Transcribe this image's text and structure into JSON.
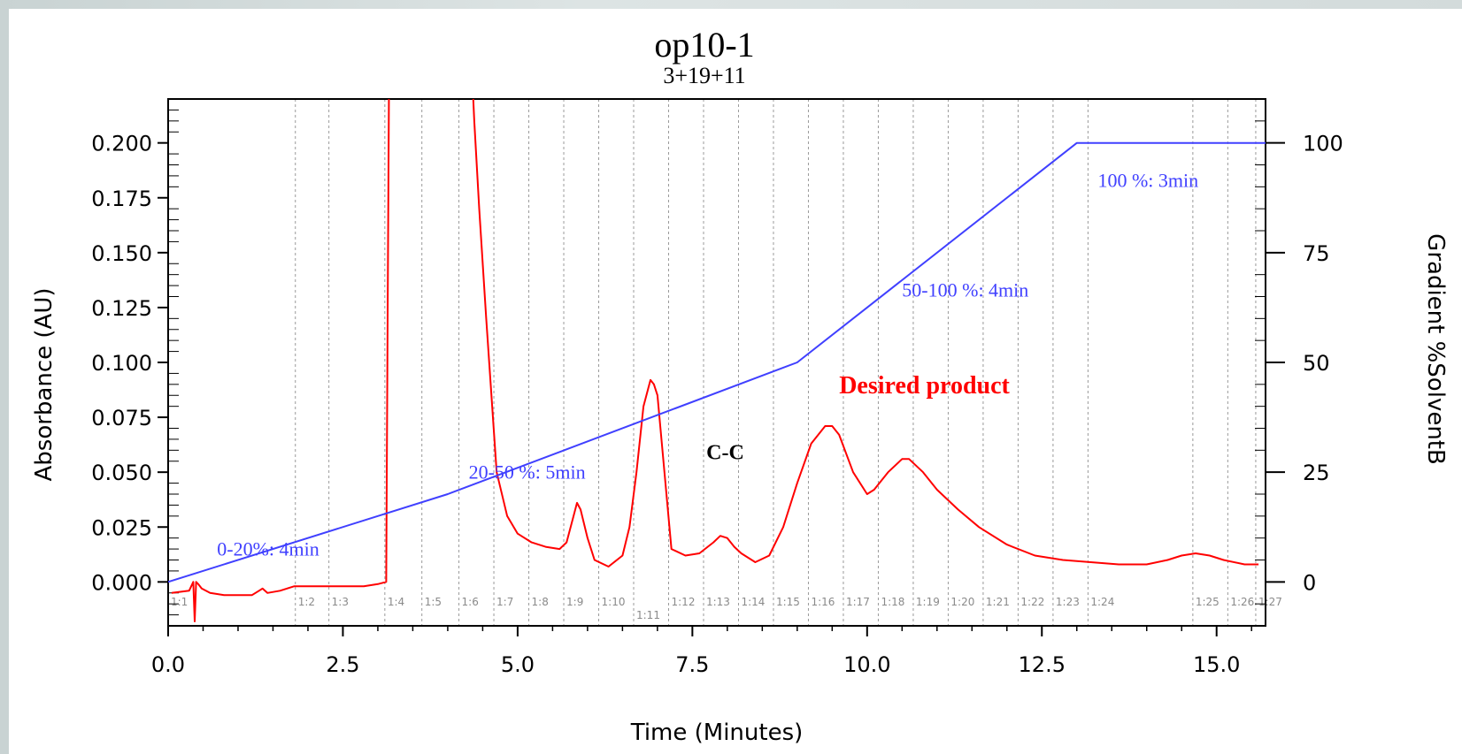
{
  "chart_data": {
    "type": "line",
    "title": "op10-1",
    "subtitle": "3+19+11",
    "xlabel": "Time (Minutes)",
    "ylabel": "Absorbance (AU)",
    "y2label": "Gradient %SolventB",
    "xlim": [
      0,
      15.7
    ],
    "ylim": [
      -0.02,
      0.22
    ],
    "y2lim": [
      -10,
      110
    ],
    "x_ticks": [
      "0.0",
      "2.5",
      "5.0",
      "7.5",
      "10.0",
      "12.5",
      "15.0"
    ],
    "y_ticks": [
      "0.000",
      "0.025",
      "0.050",
      "0.075",
      "0.100",
      "0.125",
      "0.150",
      "0.175",
      "0.200"
    ],
    "y2_ticks": [
      "0",
      "25",
      "50",
      "75",
      "100"
    ],
    "grid": "vertical dashed at fraction boundaries",
    "series": [
      {
        "color": "#ff0000",
        "axis": "left",
        "x": [
          0.05,
          0.3,
          0.36,
          0.38,
          0.4,
          0.43,
          0.48,
          0.6,
          0.8,
          1.0,
          1.2,
          1.3,
          1.35,
          1.42,
          1.6,
          1.8,
          1.9,
          2.2,
          2.5,
          2.8,
          3.0,
          3.12,
          3.14,
          3.16,
          3.18,
          3.2,
          3.22,
          4.35,
          4.38,
          4.45,
          4.55,
          4.7,
          4.85,
          5.0,
          5.2,
          5.4,
          5.6,
          5.7,
          5.8,
          5.85,
          5.9,
          6.0,
          6.1,
          6.3,
          6.5,
          6.6,
          6.7,
          6.8,
          6.9,
          6.95,
          7.0,
          7.1,
          7.2,
          7.4,
          7.6,
          7.8,
          7.9,
          8.0,
          8.1,
          8.2,
          8.4,
          8.6,
          8.8,
          9.0,
          9.2,
          9.4,
          9.5,
          9.6,
          9.8,
          10.0,
          10.1,
          10.3,
          10.5,
          10.6,
          10.8,
          11.0,
          11.3,
          11.6,
          12.0,
          12.4,
          12.8,
          13.2,
          13.6,
          14.0,
          14.3,
          14.5,
          14.7,
          14.9,
          15.1,
          15.4,
          15.6
        ],
        "values": [
          -0.005,
          -0.004,
          0.0,
          -0.018,
          0.0,
          -0.001,
          -0.003,
          -0.005,
          -0.006,
          -0.006,
          -0.006,
          -0.004,
          -0.003,
          -0.005,
          -0.004,
          -0.002,
          -0.002,
          -0.002,
          -0.002,
          -0.002,
          -0.001,
          0.0,
          0.12,
          0.23,
          0.23,
          0.23,
          0.23,
          0.23,
          0.21,
          0.17,
          0.12,
          0.05,
          0.03,
          0.022,
          0.018,
          0.016,
          0.015,
          0.018,
          0.03,
          0.036,
          0.033,
          0.02,
          0.01,
          0.007,
          0.012,
          0.025,
          0.05,
          0.08,
          0.092,
          0.09,
          0.085,
          0.05,
          0.015,
          0.012,
          0.013,
          0.018,
          0.021,
          0.02,
          0.016,
          0.013,
          0.009,
          0.012,
          0.025,
          0.045,
          0.063,
          0.071,
          0.071,
          0.067,
          0.05,
          0.04,
          0.042,
          0.05,
          0.056,
          0.056,
          0.05,
          0.042,
          0.033,
          0.025,
          0.017,
          0.012,
          0.01,
          0.009,
          0.008,
          0.008,
          0.01,
          0.012,
          0.013,
          0.012,
          0.01,
          0.008,
          0.008
        ]
      },
      {
        "color": "#4040ff",
        "axis": "right",
        "x": [
          0,
          4,
          9,
          13,
          15.7
        ],
        "values": [
          0,
          20,
          50,
          100,
          100
        ]
      }
    ],
    "fractions": [
      {
        "label": "1:1",
        "x": 0.0
      },
      {
        "label": "1:2",
        "x": 1.82
      },
      {
        "label": "1:3",
        "x": 2.3
      },
      {
        "label": "1:4",
        "x": 3.1
      },
      {
        "label": "1:5",
        "x": 3.63
      },
      {
        "label": "1:6",
        "x": 4.16
      },
      {
        "label": "1:7",
        "x": 4.66
      },
      {
        "label": "1:8",
        "x": 5.16
      },
      {
        "label": "1:9",
        "x": 5.66
      },
      {
        "label": "1:10",
        "x": 6.16
      },
      {
        "label": "1:11",
        "x": 6.66
      },
      {
        "label": "1:12",
        "x": 7.16
      },
      {
        "label": "1:13",
        "x": 7.66
      },
      {
        "label": "1:14",
        "x": 8.16
      },
      {
        "label": "1:15",
        "x": 8.66
      },
      {
        "label": "1:16",
        "x": 9.16
      },
      {
        "label": "1:17",
        "x": 9.66
      },
      {
        "label": "1:18",
        "x": 10.16
      },
      {
        "label": "1:19",
        "x": 10.66
      },
      {
        "label": "1:20",
        "x": 11.16
      },
      {
        "label": "1:21",
        "x": 11.66
      },
      {
        "label": "1:22",
        "x": 12.16
      },
      {
        "label": "1:23",
        "x": 12.66
      },
      {
        "label": "1:24",
        "x": 13.16
      },
      {
        "label": "1:25",
        "x": 14.66
      },
      {
        "label": "1:26",
        "x": 15.16
      },
      {
        "label": "1:27",
        "x": 15.56
      }
    ],
    "annotations": [
      {
        "text": "0-20%: 4min",
        "color": "#4040ff",
        "x": 0.7,
        "y": 0.012
      },
      {
        "text": "20-50 %: 5min",
        "color": "#4040ff",
        "x": 4.3,
        "y": 0.047
      },
      {
        "text": "50-100 %: 4min",
        "color": "#4040ff",
        "x": 10.5,
        "y": 0.13
      },
      {
        "text": "100 %: 3min",
        "color": "#4040ff",
        "x": 13.3,
        "y": 0.18
      },
      {
        "text": "Desired product",
        "color": "#ff0000",
        "x": 9.6,
        "y": 0.086
      },
      {
        "text": "C-C",
        "color": "#000000",
        "x": 7.7,
        "y": 0.056
      }
    ]
  }
}
